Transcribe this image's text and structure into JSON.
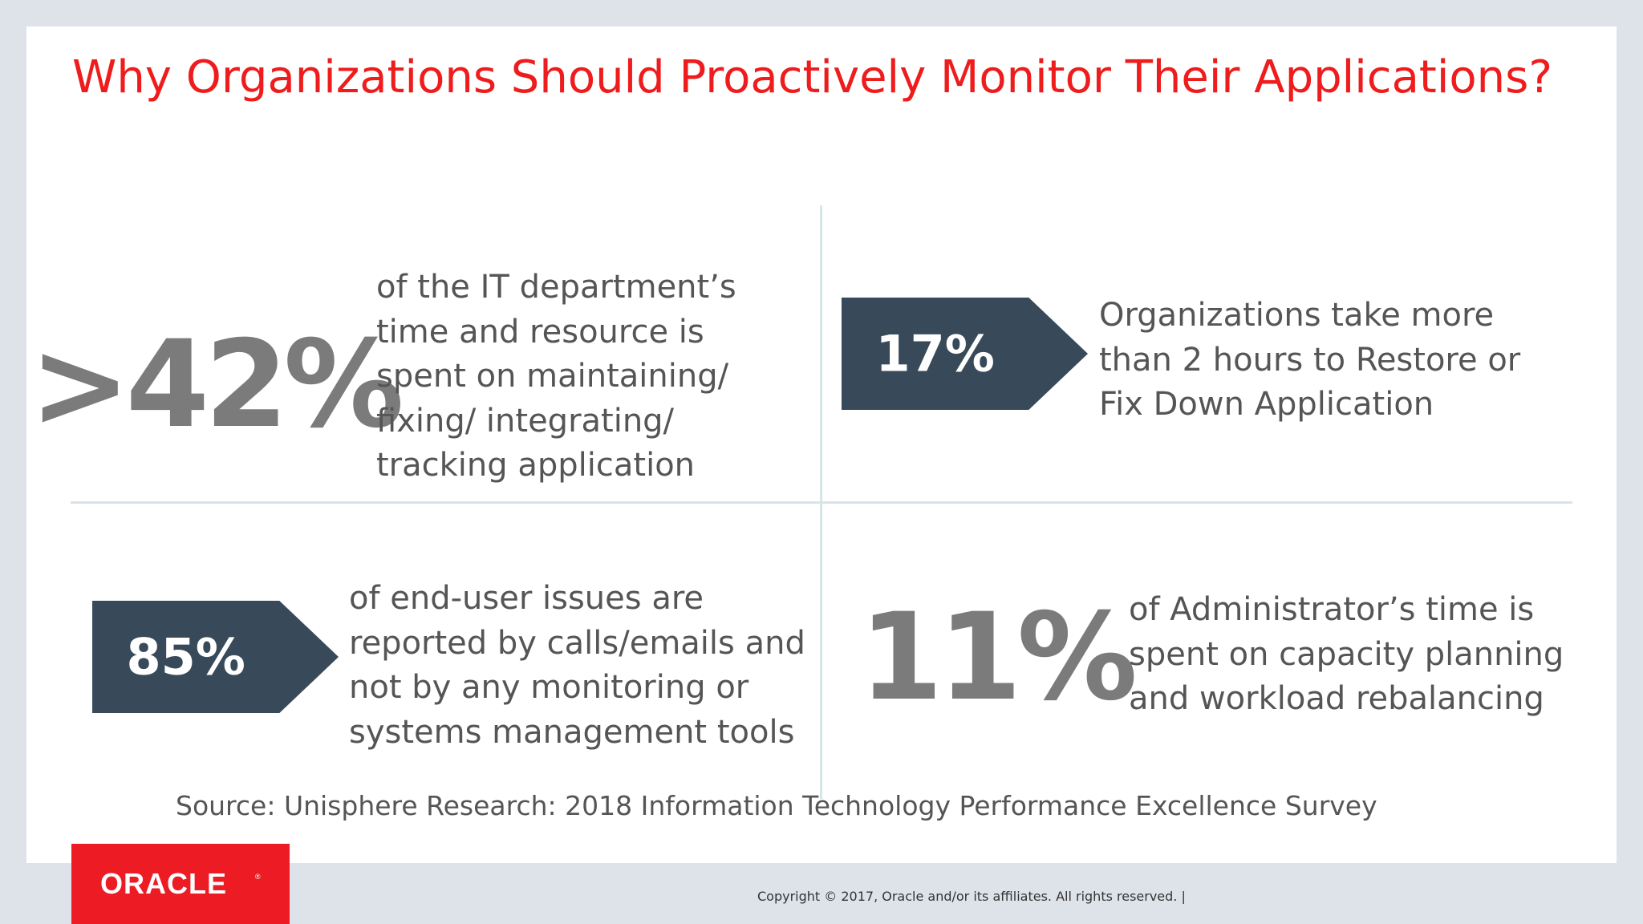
{
  "slide": {
    "title": "Why Organizations Should Proactively Monitor Their Applications?",
    "stats": {
      "top_left": {
        "value": ">42%",
        "description_lines": [
          "of the IT department’s",
          "time and resource is",
          "spent on maintaining/",
          "fixing/ integrating/",
          "tracking application"
        ]
      },
      "top_right": {
        "value": "17%",
        "description_lines": [
          "Organizations take more",
          "than 2 hours to Restore or",
          "Fix Down Application"
        ]
      },
      "bottom_left": {
        "value": "85%",
        "description_lines": [
          "of end-user issues are",
          "reported by calls/emails and",
          "not by any monitoring or",
          "systems management tools"
        ]
      },
      "bottom_right": {
        "value": "11%",
        "description_lines": [
          "of Administrator’s time is",
          "spent on capacity planning",
          "and workload rebalancing"
        ]
      }
    },
    "source": "Source:  Unisphere Research: 2018 Information Technology Performance Excellence Survey"
  },
  "footer": {
    "logo_text": "ORACLE",
    "copyright": "Copyright © 2017, Oracle and/or its affiliates. All rights reserved.  |"
  },
  "colors": {
    "title": "#ee1c1c",
    "badge": "#384a5a",
    "big_stat": "#7b7b7b",
    "text": "#555555",
    "logo_bg": "#ed1c24",
    "background": "#dee3ea"
  }
}
